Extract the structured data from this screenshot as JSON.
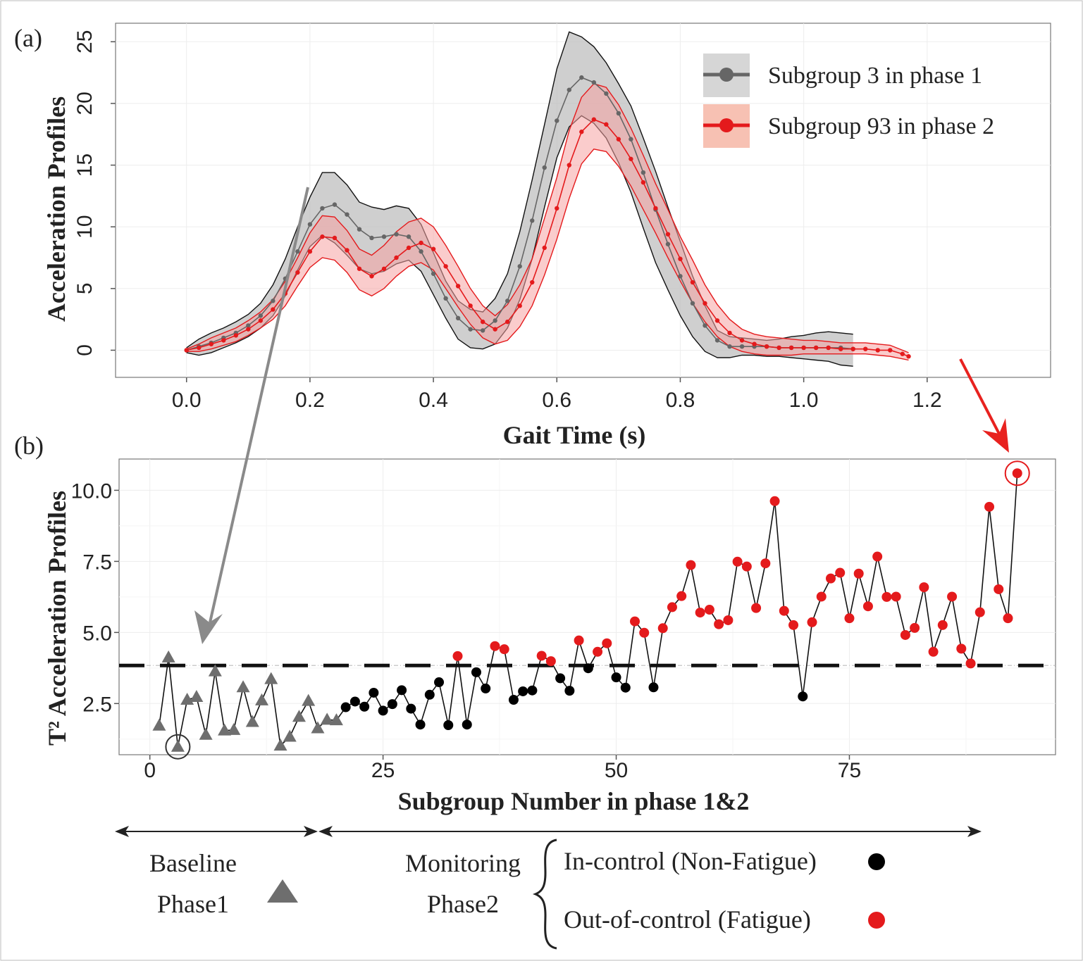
{
  "panel_labels": {
    "a": "(a)",
    "b": "(b)"
  },
  "colors": {
    "gray_line": "#666666",
    "gray_band": "#bdbdbd",
    "red_line": "#e41a1c",
    "red_band": "#f5a3a3",
    "in_control": "#000000",
    "baseline": "#6e6e6e",
    "arrow_gray": "#8a8a8a",
    "arrow_red": "#e8221f"
  },
  "chart_data": [
    {
      "type": "line",
      "panel": "(a)",
      "xlabel": "Gait Time (s)",
      "ylabel": "Acceleration Profiles",
      "xlim": [
        -0.115,
        1.4
      ],
      "ylim": [
        -2.2,
        26.5
      ],
      "xticks": [
        0.0,
        0.2,
        0.4,
        0.6,
        0.8,
        1.0,
        1.2
      ],
      "xtick_labels": [
        "0.0",
        "0.2",
        "0.4",
        "0.6",
        "0.8",
        "1.0",
        "1.2"
      ],
      "yticks": [
        0,
        5,
        10,
        15,
        20,
        25
      ],
      "ytick_labels": [
        "0",
        "5",
        "10",
        "15",
        "20",
        "25"
      ],
      "legend_position": "top-right",
      "series": [
        {
          "name": "Subgroup 3 in phase 1",
          "x": [
            0.0,
            0.02,
            0.04,
            0.06,
            0.08,
            0.1,
            0.12,
            0.14,
            0.16,
            0.18,
            0.2,
            0.22,
            0.24,
            0.26,
            0.28,
            0.3,
            0.32,
            0.34,
            0.36,
            0.38,
            0.4,
            0.42,
            0.44,
            0.46,
            0.48,
            0.5,
            0.52,
            0.54,
            0.56,
            0.58,
            0.6,
            0.62,
            0.64,
            0.66,
            0.68,
            0.7,
            0.72,
            0.74,
            0.76,
            0.78,
            0.8,
            0.82,
            0.84,
            0.86,
            0.88,
            0.9,
            0.92,
            0.94,
            0.96,
            0.98,
            1.0,
            1.02,
            1.04,
            1.06,
            1.08
          ],
          "y": [
            0.0,
            0.3,
            0.6,
            1.0,
            1.4,
            2.0,
            2.8,
            4.0,
            5.8,
            8.0,
            10.2,
            11.5,
            11.8,
            11.0,
            9.8,
            9.1,
            9.2,
            9.4,
            9.2,
            8.0,
            6.2,
            4.2,
            2.6,
            1.7,
            1.6,
            2.4,
            4.0,
            6.8,
            10.5,
            14.8,
            18.6,
            21.1,
            22.1,
            21.7,
            20.8,
            19.2,
            17.1,
            14.4,
            11.4,
            8.6,
            6.0,
            3.8,
            2.0,
            0.8,
            0.3,
            0.3,
            0.3,
            0.3,
            0.2,
            0.2,
            0.2,
            0.2,
            0.2,
            0.2,
            0.1
          ],
          "lower": [
            -0.2,
            -0.4,
            -0.2,
            0.2,
            0.6,
            1.1,
            1.8,
            2.8,
            4.4,
            6.5,
            8.4,
            9.3,
            8.7,
            7.7,
            6.6,
            6.2,
            6.4,
            7.0,
            7.3,
            6.4,
            4.5,
            2.6,
            0.9,
            0.2,
            0.1,
            0.5,
            1.8,
            4.1,
            7.4,
            11.6,
            15.6,
            18.1,
            19.0,
            18.4,
            17.2,
            15.2,
            12.8,
            9.9,
            7.1,
            4.9,
            2.8,
            1.1,
            -0.1,
            -0.6,
            -0.6,
            -0.4,
            -0.4,
            -0.5,
            -0.5,
            -0.6,
            -0.7,
            -0.8,
            -0.9,
            -1.2,
            -1.3
          ],
          "upper": [
            0.2,
            0.9,
            1.4,
            1.8,
            2.3,
            2.9,
            3.8,
            5.3,
            7.4,
            10.0,
            12.4,
            14.4,
            14.4,
            13.4,
            12.0,
            11.6,
            11.4,
            11.7,
            11.5,
            10.2,
            7.9,
            5.6,
            4.0,
            3.3,
            3.1,
            4.2,
            6.2,
            9.6,
            13.8,
            18.3,
            22.8,
            25.8,
            25.4,
            24.6,
            23.3,
            21.6,
            19.8,
            17.2,
            14.5,
            11.6,
            8.8,
            6.0,
            3.6,
            1.6,
            1.1,
            1.0,
            0.9,
            0.8,
            0.9,
            1.1,
            1.2,
            1.4,
            1.5,
            1.4,
            1.3
          ]
        },
        {
          "name": "Subgroup 93 in phase 2",
          "x": [
            0.0,
            0.02,
            0.04,
            0.06,
            0.08,
            0.1,
            0.12,
            0.14,
            0.16,
            0.18,
            0.2,
            0.22,
            0.24,
            0.26,
            0.28,
            0.3,
            0.32,
            0.34,
            0.36,
            0.38,
            0.4,
            0.42,
            0.44,
            0.46,
            0.48,
            0.5,
            0.52,
            0.54,
            0.56,
            0.58,
            0.6,
            0.62,
            0.64,
            0.66,
            0.68,
            0.7,
            0.72,
            0.74,
            0.76,
            0.78,
            0.8,
            0.82,
            0.84,
            0.86,
            0.88,
            0.9,
            0.92,
            0.94,
            0.96,
            0.98,
            1.0,
            1.02,
            1.04,
            1.06,
            1.08,
            1.1,
            1.12,
            1.14,
            1.16,
            1.17
          ],
          "y": [
            0.0,
            0.2,
            0.5,
            0.8,
            1.2,
            1.7,
            2.4,
            3.3,
            4.6,
            6.3,
            8.0,
            9.2,
            9.1,
            8.1,
            6.6,
            6.0,
            6.6,
            7.5,
            8.3,
            8.7,
            8.2,
            6.8,
            5.2,
            3.6,
            2.3,
            1.7,
            2.3,
            3.6,
            5.5,
            8.3,
            11.5,
            15.0,
            17.7,
            18.7,
            18.3,
            17.1,
            15.5,
            13.6,
            11.5,
            9.4,
            7.4,
            5.5,
            3.8,
            2.4,
            1.4,
            0.8,
            0.5,
            0.3,
            0.2,
            0.2,
            0.2,
            0.2,
            0.2,
            0.1,
            0.1,
            0.1,
            0.0,
            0.0,
            -0.3,
            -0.5
          ],
          "lower": [
            -0.1,
            -0.1,
            0.1,
            0.4,
            0.7,
            1.2,
            1.8,
            2.5,
            3.6,
            5.2,
            6.7,
            7.5,
            7.3,
            6.3,
            4.9,
            4.4,
            5.0,
            6.0,
            6.8,
            7.1,
            6.5,
            5.0,
            3.5,
            2.1,
            1.0,
            0.5,
            0.8,
            1.9,
            3.6,
            6.1,
            9.0,
            12.3,
            15.1,
            16.3,
            16.1,
            14.9,
            13.3,
            11.4,
            9.5,
            7.5,
            5.6,
            3.8,
            2.3,
            1.1,
            0.3,
            -0.1,
            -0.3,
            -0.4,
            -0.4,
            -0.4,
            -0.3,
            -0.3,
            -0.3,
            -0.3,
            -0.3,
            -0.3,
            -0.4,
            -0.5,
            -0.7,
            -0.8
          ],
          "upper": [
            0.1,
            0.5,
            1.0,
            1.4,
            1.8,
            2.4,
            3.1,
            4.1,
            5.6,
            7.5,
            9.5,
            10.9,
            10.8,
            9.7,
            8.2,
            7.7,
            8.5,
            9.6,
            10.4,
            10.7,
            10.0,
            8.5,
            6.8,
            5.0,
            3.6,
            2.8,
            3.7,
            5.3,
            7.4,
            10.7,
            14.0,
            17.8,
            20.5,
            21.6,
            21.3,
            19.9,
            18.0,
            15.8,
            13.5,
            11.4,
            9.2,
            7.3,
            5.3,
            3.7,
            2.5,
            1.7,
            1.3,
            1.1,
            1.0,
            0.9,
            0.8,
            0.8,
            0.7,
            0.6,
            0.6,
            0.6,
            0.5,
            0.4,
            0.0,
            -0.2
          ]
        }
      ]
    },
    {
      "type": "scatter",
      "panel": "(b)",
      "xlabel": "Subgroup Number in phase 1&2",
      "ylabel": "T² Acceleration Profiles",
      "xlim": [
        -3.3,
        97.1
      ],
      "ylim": [
        0.7,
        11.1
      ],
      "xticks": [
        0,
        25,
        50,
        75
      ],
      "xtick_labels": [
        "0",
        "25",
        "50",
        "75"
      ],
      "yticks": [
        2.5,
        5.0,
        7.5,
        10.0
      ],
      "ytick_labels": [
        "2.5",
        "5.0",
        "7.5",
        "10.0"
      ],
      "control_limit": 3.84,
      "highlighted_points": [
        3,
        93
      ],
      "phase1_values": [
        1.72,
        4.12,
        0.98,
        2.63,
        2.73,
        1.4,
        3.63,
        1.55,
        1.57,
        3.07,
        1.85,
        2.61,
        3.36,
        1.02,
        1.33,
        2.03,
        2.59,
        1.63,
        1.93,
        1.91
      ],
      "phase2_values": [
        2.37,
        2.57,
        2.39,
        2.88,
        2.25,
        2.48,
        2.97,
        2.32,
        1.76,
        2.81,
        3.25,
        1.74,
        4.17,
        1.76,
        3.6,
        3.03,
        4.52,
        4.41,
        2.63,
        2.93,
        2.96,
        4.18,
        3.99,
        3.39,
        2.95,
        4.72,
        3.74,
        4.32,
        4.62,
        3.42,
        3.06,
        5.39,
        4.99,
        3.07,
        5.15,
        5.89,
        6.28,
        7.37,
        5.7,
        5.8,
        5.29,
        5.43,
        7.49,
        7.32,
        5.86,
        7.43,
        9.62,
        5.76,
        5.26,
        2.75,
        5.36,
        6.26,
        6.9,
        7.1,
        5.5,
        7.07,
        5.92,
        7.67,
        6.25,
        6.26,
        4.91,
        5.16,
        6.59,
        4.32,
        5.26,
        6.26,
        4.43,
        3.91,
        5.71,
        9.42,
        6.52,
        5.5,
        10.6
      ]
    }
  ],
  "annotation": {
    "baseline_label": "Baseline",
    "phase1_label": "Phase1",
    "monitoring_label": "Monitoring",
    "phase2_label": "Phase2",
    "in_control_label": "In-control (Non-Fatigue)",
    "out_of_control_label": "Out-of-control (Fatigue)"
  }
}
